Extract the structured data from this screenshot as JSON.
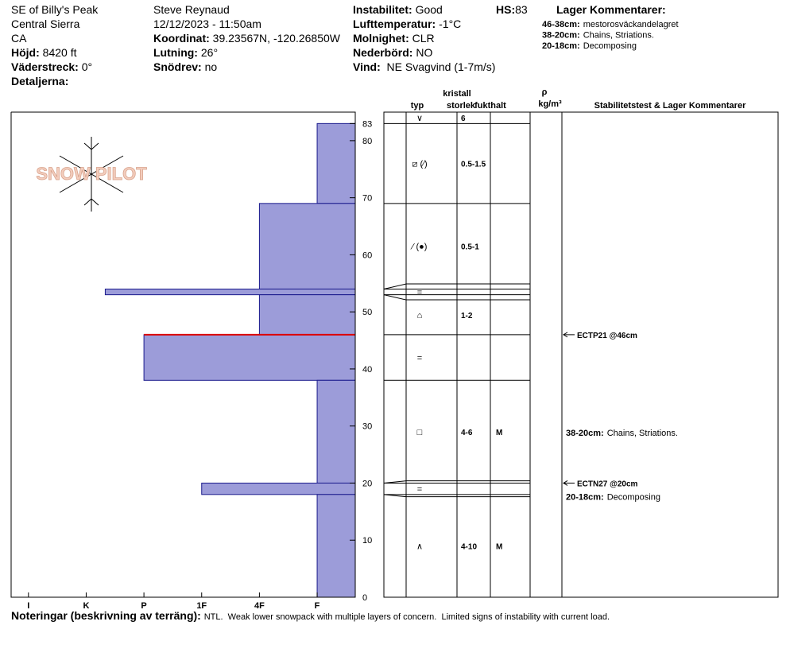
{
  "header": {
    "location": [
      "SE of Billy's Peak",
      "Central Sierra",
      "CA"
    ],
    "elevation": {
      "label": "Höjd:",
      "value": "8420 ft"
    },
    "aspect": {
      "label": "Väderstreck:",
      "value": "0°"
    },
    "details": {
      "label": "Detaljerna:"
    },
    "observer": "Steve Reynaud",
    "datetime": "12/12/2023 - 11:50am",
    "coordinates": {
      "label": "Koordinat:",
      "value": "39.23567N, -120.26850W"
    },
    "slope": {
      "label": "Lutning:",
      "value": "26°"
    },
    "drift": {
      "label": "Snödrev:",
      "value": "no"
    },
    "stability": {
      "label": "Instabilitet:",
      "value": "Good"
    },
    "air_temp": {
      "label": "Lufttemperatur:",
      "value": "-1°C"
    },
    "sky": {
      "label": "Molnighet:",
      "value": "CLR"
    },
    "precip": {
      "label": "Nederbörd:",
      "value": "NO"
    },
    "wind": {
      "label": "Vind:",
      "value": "NE Svagvind (1-7m/s)"
    },
    "hs": {
      "label": "HS:",
      "value": 83
    },
    "layer_comments": {
      "title": "Lager Kommentarer:",
      "items": [
        {
          "range": "46-38cm:",
          "text": "mestorosväckandelagret"
        },
        {
          "range": "38-20cm:",
          "text": "Chains, Striations."
        },
        {
          "range": "20-18cm:",
          "text": "Decomposing"
        }
      ]
    }
  },
  "logo": "SNOW PILOT",
  "chart_data": {
    "type": "snow-profile",
    "ylim": [
      0,
      85
    ],
    "yticks": [
      0,
      10,
      20,
      30,
      40,
      50,
      60,
      70,
      80,
      83
    ],
    "xlim": [
      6.3,
      0.34
    ],
    "xticks": [
      {
        "value": 6,
        "label": "I"
      },
      {
        "value": 5,
        "label": "K"
      },
      {
        "value": 4,
        "label": "P"
      },
      {
        "value": 3,
        "label": "1F"
      },
      {
        "value": 2,
        "label": "4F"
      },
      {
        "value": 1,
        "label": "F"
      }
    ],
    "color": "#9c9cd9",
    "column_headers": {
      "kristall": "kristall",
      "typ": "typ",
      "storlek": "storlek",
      "fukthalt": "fukthalt",
      "rho": "ρ",
      "density_unit": "kg/m³",
      "comments": "Stabilitetstest & Lager Kommentarer"
    },
    "surface": {
      "grain": "∨",
      "size": "6"
    },
    "layers": [
      {
        "top": 83,
        "bottom": 69,
        "hardness": 1,
        "grain": "⧄ (⁄)",
        "size": "0.5-1.5"
      },
      {
        "top": 69,
        "bottom": 54,
        "hardness": 2,
        "grain": "⁄ (●)",
        "size": "0.5-1"
      },
      {
        "top": 54,
        "bottom": 53,
        "hardness": 4.67,
        "grain": "="
      },
      {
        "top": 53,
        "bottom": 46,
        "hardness": 2,
        "grain": "⌂",
        "size": "1-2"
      },
      {
        "top": 46,
        "bottom": 38,
        "hardness": 4,
        "grain": "="
      },
      {
        "top": 38,
        "bottom": 20,
        "hardness": 1,
        "grain": "□",
        "size": "4-6",
        "moisture": "M",
        "comment": {
          "range": "38-20cm:",
          "text": "Chains, Striations."
        }
      },
      {
        "top": 20,
        "bottom": 18,
        "hardness": 3,
        "grain": "=",
        "comment": {
          "range": "20-18cm:",
          "text": "Decomposing"
        }
      },
      {
        "top": 18,
        "bottom": 0,
        "hardness": 1,
        "grain": "∧",
        "size": "4-10",
        "moisture": "M"
      }
    ],
    "tests": [
      {
        "depth": 46,
        "label": "ECTP21 @46cm"
      },
      {
        "depth": 20,
        "label": "ECTN27 @20cm"
      }
    ]
  },
  "notes": {
    "label": "Noteringar (beskrivning av terräng):",
    "text": "NTL.  Weak lower snowpack with multiple layers of concern.  Limited signs of instability with current load."
  }
}
